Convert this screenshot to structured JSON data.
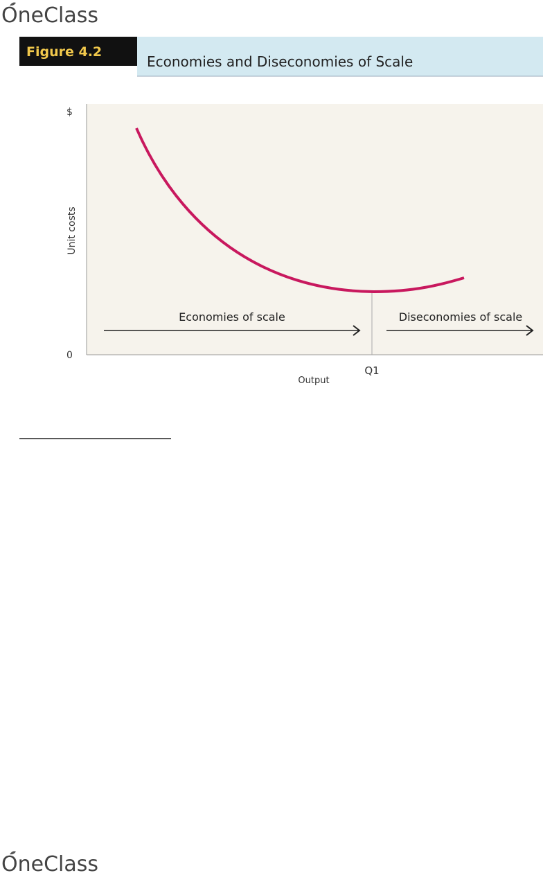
{
  "header": {
    "logo": "OneClass"
  },
  "figure": {
    "label": "Figure 4.2",
    "title": "Economies and Diseconomies of Scale",
    "y_axis_top": "$",
    "y_axis_label": "Unit costs",
    "origin": "0",
    "x_axis_label": "Output",
    "x_marker": "Q1",
    "left_arrow_label": "Economies of scale",
    "right_arrow_label": "Diseconomies of scale"
  },
  "footer": {
    "logo": "OneClass"
  }
}
